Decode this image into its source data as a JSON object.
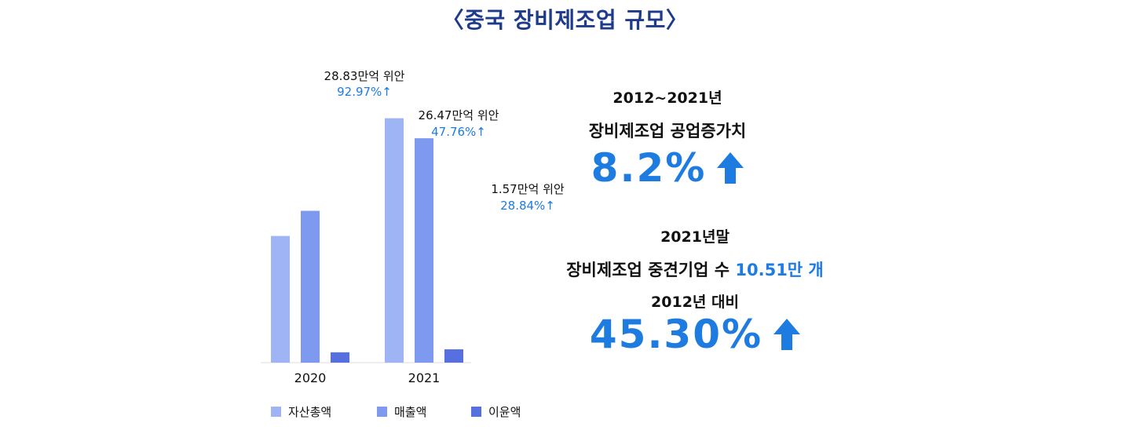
{
  "title": "〈중국 장비제조업 규모〉",
  "chart_data": {
    "type": "bar",
    "categories": [
      "2020",
      "2021"
    ],
    "series": [
      {
        "name": "자산총액",
        "color": "#9fb4f5",
        "values": [
          14.94,
          28.83
        ]
      },
      {
        "name": "매출액",
        "color": "#7e9af0",
        "values": [
          17.91,
          26.47
        ]
      },
      {
        "name": "이윤액",
        "color": "#5670e0",
        "values": [
          1.22,
          1.57
        ]
      }
    ],
    "annotations": [
      {
        "series": "자산총액",
        "label": "28.83만억 위안",
        "growth": "92.97%↑"
      },
      {
        "series": "매출액",
        "label": "26.47만억 위안",
        "growth": "47.76%↑"
      },
      {
        "series": "이윤액",
        "label": "1.57만억 위안",
        "growth": "28.84%↑"
      }
    ],
    "legend": "bottom"
  },
  "stats": {
    "block1": {
      "period": "2012~2021년",
      "label": "장비제조업 공업증가치",
      "value": "8.2%"
    },
    "block2": {
      "period": "2021년말",
      "label": "장비제조업 중견기업 수",
      "highlight": "10.51만 개",
      "compare": "2012년 대비",
      "value": "45.30%"
    }
  },
  "colors": {
    "accent": "#1e7be0",
    "title": "#1e3a8a"
  },
  "icons": {
    "arrow": "arrow-up-icon"
  }
}
